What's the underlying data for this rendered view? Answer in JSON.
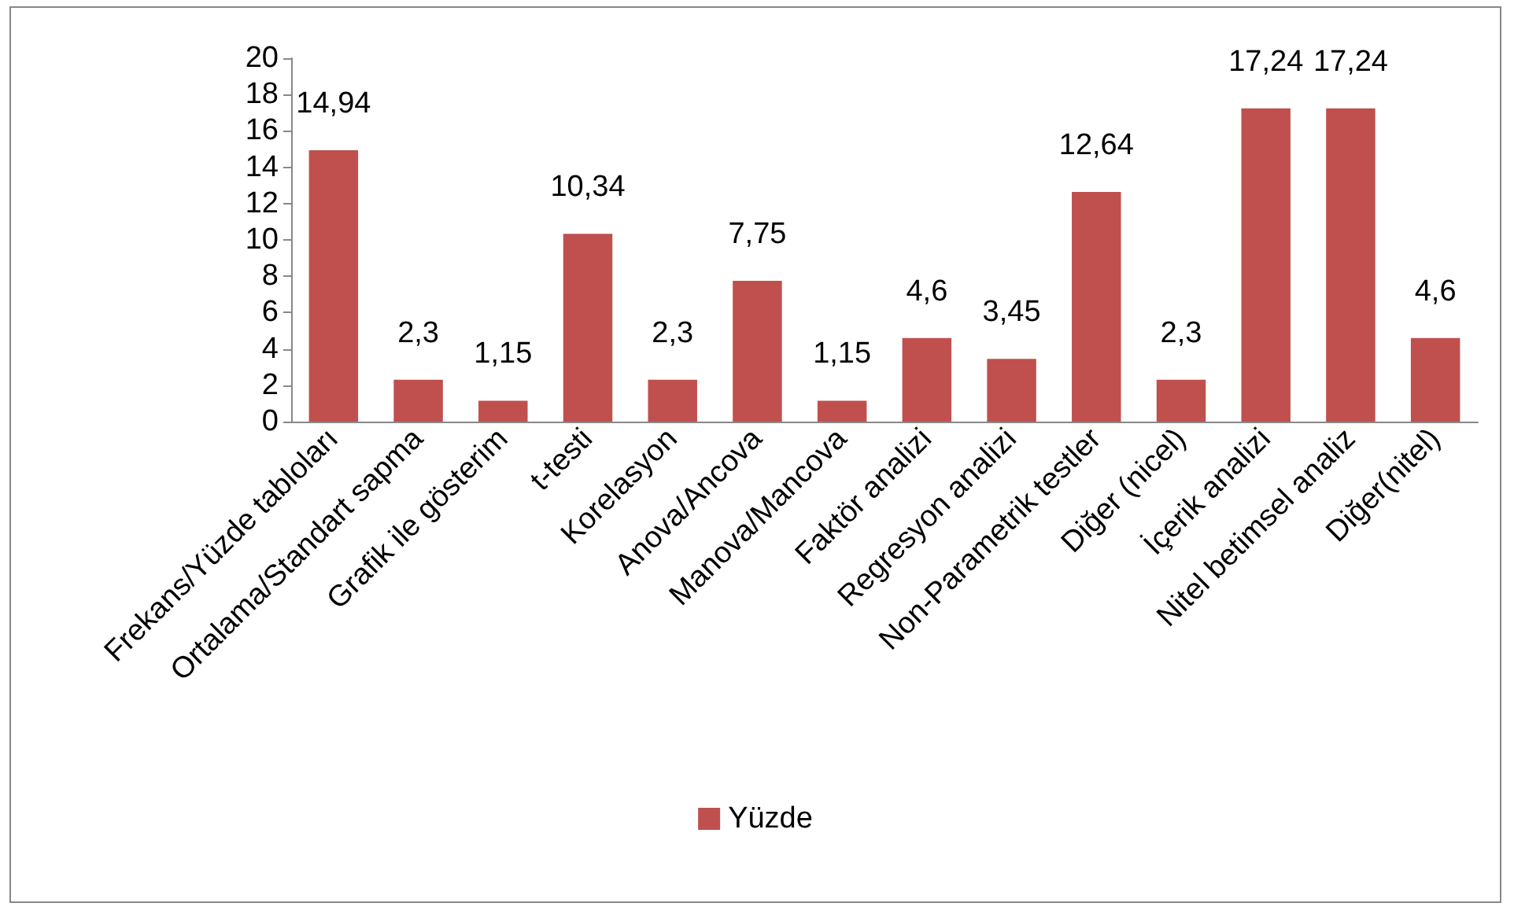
{
  "chart_data": {
    "type": "bar",
    "categories": [
      "Frekans/Yüzde tabloları",
      "Ortalama/Standart sapma",
      "Grafik ile gösterim",
      "t-testi",
      "Korelasyon",
      "Anova/Ancova",
      "Manova/Mancova",
      "Faktör analizi",
      "Regresyon analizi",
      "Non-Parametrik testler",
      "Diğer (nicel)",
      "İçerik analizi",
      "Nitel betimsel analiz",
      "Diğer(nitel)"
    ],
    "series": [
      {
        "name": "Yüzde",
        "color": "#c0504d",
        "values": [
          14.94,
          2.3,
          1.15,
          10.34,
          2.3,
          7.75,
          1.15,
          4.6,
          3.45,
          12.64,
          2.3,
          17.24,
          17.24,
          4.6
        ],
        "value_labels": [
          "14,94",
          "2,3",
          "1,15",
          "10,34",
          "2,3",
          "7,75",
          "1,15",
          "4,6",
          "3,45",
          "12,64",
          "2,3",
          "17,24",
          "17,24",
          "4,6"
        ]
      }
    ],
    "ylim": [
      0,
      20
    ],
    "yticks": [
      0,
      2,
      4,
      6,
      8,
      10,
      12,
      14,
      16,
      18,
      20
    ],
    "grid": false,
    "legend": "bottom"
  }
}
